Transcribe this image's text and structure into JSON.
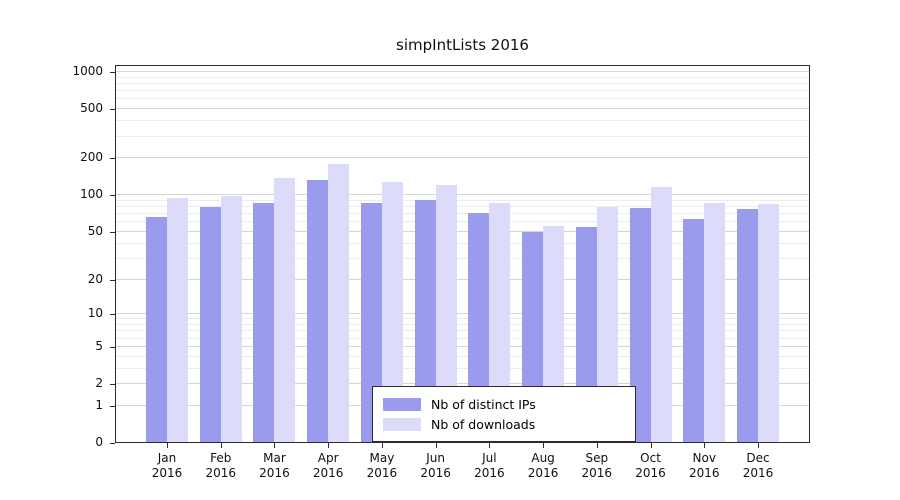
{
  "chart_data": {
    "type": "bar",
    "title": "simpIntLists 2016",
    "categories": [
      "Jan",
      "Feb",
      "Mar",
      "Apr",
      "May",
      "Jun",
      "Jul",
      "Aug",
      "Sep",
      "Oct",
      "Nov",
      "Dec"
    ],
    "year": "2016",
    "series": [
      {
        "name": "Nb of distinct IPs",
        "color": "#9b9bee",
        "values": [
          66,
          80,
          87,
          133,
          87,
          92,
          71,
          50,
          55,
          78,
          64,
          77
        ]
      },
      {
        "name": "Nb of downloads",
        "color": "#dcdcfa",
        "values": [
          95,
          99,
          138,
          178,
          127,
          122,
          87,
          56,
          80,
          116,
          86,
          85
        ]
      }
    ],
    "xlabel": "",
    "ylabel": "",
    "y_scale": "log1p",
    "y_ticks": [
      0,
      1,
      2,
      5,
      10,
      20,
      50,
      100,
      200,
      500,
      1000
    ],
    "y_minor_gridlines": [
      3,
      4,
      6,
      7,
      8,
      9,
      30,
      40,
      60,
      70,
      80,
      90,
      300,
      400,
      600,
      700,
      800,
      900
    ],
    "ylim": [
      0,
      1200
    ],
    "grid": true,
    "legend_position": "lower center"
  },
  "legend": {
    "items": [
      {
        "label": "Nb of distinct IPs"
      },
      {
        "label": "Nb of downloads"
      }
    ]
  }
}
